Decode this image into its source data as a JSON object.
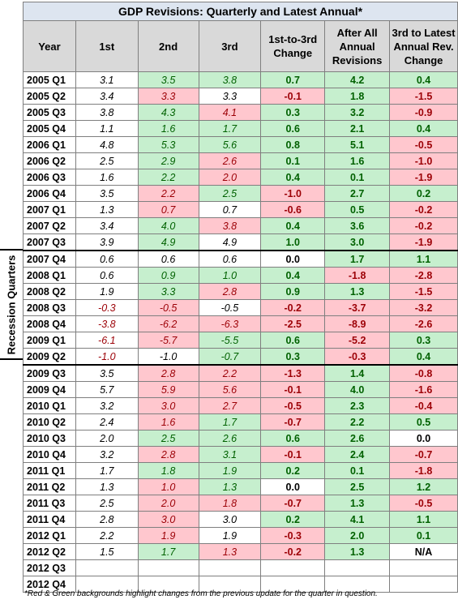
{
  "title": "GDP Revisions: Quarterly and Latest Annual*",
  "side_label": "Recession Quarters",
  "footnote": "*Red & Green backgrounds highlight changes from the previous update for the quarter in question.",
  "headers": [
    "Year",
    "1st",
    "2nd",
    "3rd",
    "1st-to-3rd Change",
    "After All Annual Revisions",
    "3rd to Latest Annual Rev. Change"
  ],
  "rows": [
    {
      "year": "2005 Q1",
      "c1": "3.1",
      "c2": "3.5",
      "c2bg": "g",
      "c3": "3.8",
      "c3bg": "g",
      "d13": "0.7",
      "d13bg": "g",
      "aar": "4.2",
      "aarbg": "g",
      "d3l": "0.4",
      "d3lbg": "g"
    },
    {
      "year": "2005 Q2",
      "c1": "3.4",
      "c2": "3.3",
      "c2bg": "r",
      "c3": "3.3",
      "c3bg": "w",
      "d13": "-0.1",
      "d13bg": "r",
      "aar": "1.8",
      "aarbg": "g",
      "d3l": "-1.5",
      "d3lbg": "r"
    },
    {
      "year": "2005 Q3",
      "c1": "3.8",
      "c2": "4.3",
      "c2bg": "g",
      "c3": "4.1",
      "c3bg": "r",
      "d13": "0.3",
      "d13bg": "g",
      "aar": "3.2",
      "aarbg": "g",
      "d3l": "-0.9",
      "d3lbg": "r"
    },
    {
      "year": "2005 Q4",
      "c1": "1.1",
      "c2": "1.6",
      "c2bg": "g",
      "c3": "1.7",
      "c3bg": "g",
      "d13": "0.6",
      "d13bg": "g",
      "aar": "2.1",
      "aarbg": "g",
      "d3l": "0.4",
      "d3lbg": "g"
    },
    {
      "year": "2006 Q1",
      "c1": "4.8",
      "c2": "5.3",
      "c2bg": "g",
      "c3": "5.6",
      "c3bg": "g",
      "d13": "0.8",
      "d13bg": "g",
      "aar": "5.1",
      "aarbg": "g",
      "d3l": "-0.5",
      "d3lbg": "r"
    },
    {
      "year": "2006 Q2",
      "c1": "2.5",
      "c2": "2.9",
      "c2bg": "g",
      "c3": "2.6",
      "c3bg": "r",
      "d13": "0.1",
      "d13bg": "g",
      "aar": "1.6",
      "aarbg": "g",
      "d3l": "-1.0",
      "d3lbg": "r"
    },
    {
      "year": "2006 Q3",
      "c1": "1.6",
      "c2": "2.2",
      "c2bg": "g",
      "c3": "2.0",
      "c3bg": "r",
      "d13": "0.4",
      "d13bg": "g",
      "aar": "0.1",
      "aarbg": "g",
      "d3l": "-1.9",
      "d3lbg": "r"
    },
    {
      "year": "2006 Q4",
      "c1": "3.5",
      "c2": "2.2",
      "c2bg": "r",
      "c3": "2.5",
      "c3bg": "g",
      "d13": "-1.0",
      "d13bg": "r",
      "aar": "2.7",
      "aarbg": "g",
      "d3l": "0.2",
      "d3lbg": "g"
    },
    {
      "year": "2007 Q1",
      "c1": "1.3",
      "c2": "0.7",
      "c2bg": "r",
      "c3": "0.7",
      "c3bg": "w",
      "d13": "-0.6",
      "d13bg": "r",
      "aar": "0.5",
      "aarbg": "g",
      "d3l": "-0.2",
      "d3lbg": "r"
    },
    {
      "year": "2007 Q2",
      "c1": "3.4",
      "c2": "4.0",
      "c2bg": "g",
      "c3": "3.8",
      "c3bg": "r",
      "d13": "0.4",
      "d13bg": "g",
      "aar": "3.6",
      "aarbg": "g",
      "d3l": "-0.2",
      "d3lbg": "r"
    },
    {
      "year": "2007 Q3",
      "c1": "3.9",
      "c2": "4.9",
      "c2bg": "g",
      "c3": "4.9",
      "c3bg": "w",
      "d13": "1.0",
      "d13bg": "g",
      "aar": "3.0",
      "aarbg": "g",
      "d3l": "-1.9",
      "d3lbg": "r"
    },
    {
      "year": "2007 Q4",
      "c1": "0.6",
      "c2": "0.6",
      "c2bg": "w",
      "c3": "0.6",
      "c3bg": "w",
      "d13": "0.0",
      "d13bg": "w",
      "aar": "1.7",
      "aarbg": "g",
      "d3l": "1.1",
      "d3lbg": "g"
    },
    {
      "year": "2008 Q1",
      "c1": "0.6",
      "c2": "0.9",
      "c2bg": "g",
      "c3": "1.0",
      "c3bg": "g",
      "d13": "0.4",
      "d13bg": "g",
      "aar": "-1.8",
      "aarbg": "r",
      "d3l": "-2.8",
      "d3lbg": "r"
    },
    {
      "year": "2008 Q2",
      "c1": "1.9",
      "c2": "3.3",
      "c2bg": "g",
      "c3": "2.8",
      "c3bg": "r",
      "d13": "0.9",
      "d13bg": "g",
      "aar": "1.3",
      "aarbg": "g",
      "d3l": "-1.5",
      "d3lbg": "r"
    },
    {
      "year": "2008 Q3",
      "c1": "-0.3",
      "c2": "-0.5",
      "c2bg": "r",
      "c3": "-0.5",
      "c3bg": "w",
      "d13": "-0.2",
      "d13bg": "r",
      "aar": "-3.7",
      "aarbg": "r",
      "d3l": "-3.2",
      "d3lbg": "r"
    },
    {
      "year": "2008 Q4",
      "c1": "-3.8",
      "c2": "-6.2",
      "c2bg": "r",
      "c3": "-6.3",
      "c3bg": "r",
      "d13": "-2.5",
      "d13bg": "r",
      "aar": "-8.9",
      "aarbg": "r",
      "d3l": "-2.6",
      "d3lbg": "r"
    },
    {
      "year": "2009 Q1",
      "c1": "-6.1",
      "c2": "-5.7",
      "c2bg": "r",
      "c3": "-5.5",
      "c3bg": "g",
      "d13": "0.6",
      "d13bg": "g",
      "aar": "-5.2",
      "aarbg": "r",
      "d3l": "0.3",
      "d3lbg": "g"
    },
    {
      "year": "2009 Q2",
      "c1": "-1.0",
      "c2": "-1.0",
      "c2bg": "w",
      "c3": "-0.7",
      "c3bg": "g",
      "d13": "0.3",
      "d13bg": "g",
      "aar": "-0.3",
      "aarbg": "r",
      "d3l": "0.4",
      "d3lbg": "g"
    },
    {
      "year": "2009 Q3",
      "c1": "3.5",
      "c2": "2.8",
      "c2bg": "r",
      "c3": "2.2",
      "c3bg": "r",
      "d13": "-1.3",
      "d13bg": "r",
      "aar": "1.4",
      "aarbg": "g",
      "d3l": "-0.8",
      "d3lbg": "r"
    },
    {
      "year": "2009 Q4",
      "c1": "5.7",
      "c2": "5.9",
      "c2bg": "r",
      "c3": "5.6",
      "c3bg": "r",
      "d13": "-0.1",
      "d13bg": "r",
      "aar": "4.0",
      "aarbg": "g",
      "d3l": "-1.6",
      "d3lbg": "r"
    },
    {
      "year": "2010 Q1",
      "c1": "3.2",
      "c2": "3.0",
      "c2bg": "r",
      "c3": "2.7",
      "c3bg": "r",
      "d13": "-0.5",
      "d13bg": "r",
      "aar": "2.3",
      "aarbg": "g",
      "d3l": "-0.4",
      "d3lbg": "r"
    },
    {
      "year": "2010 Q2",
      "c1": "2.4",
      "c2": "1.6",
      "c2bg": "r",
      "c3": "1.7",
      "c3bg": "g",
      "d13": "-0.7",
      "d13bg": "r",
      "aar": "2.2",
      "aarbg": "g",
      "d3l": "0.5",
      "d3lbg": "g"
    },
    {
      "year": "2010 Q3",
      "c1": "2.0",
      "c2": "2.5",
      "c2bg": "g",
      "c3": "2.6",
      "c3bg": "g",
      "d13": "0.6",
      "d13bg": "g",
      "aar": "2.6",
      "aarbg": "g",
      "d3l": "0.0",
      "d3lbg": "w"
    },
    {
      "year": "2010 Q4",
      "c1": "3.2",
      "c2": "2.8",
      "c2bg": "r",
      "c3": "3.1",
      "c3bg": "g",
      "d13": "-0.1",
      "d13bg": "r",
      "aar": "2.4",
      "aarbg": "g",
      "d3l": "-0.7",
      "d3lbg": "r"
    },
    {
      "year": "2011 Q1",
      "c1": "1.7",
      "c2": "1.8",
      "c2bg": "g",
      "c3": "1.9",
      "c3bg": "g",
      "d13": "0.2",
      "d13bg": "g",
      "aar": "0.1",
      "aarbg": "g",
      "d3l": "-1.8",
      "d3lbg": "r"
    },
    {
      "year": "2011 Q2",
      "c1": "1.3",
      "c2": "1.0",
      "c2bg": "r",
      "c3": "1.3",
      "c3bg": "g",
      "d13": "0.0",
      "d13bg": "w",
      "aar": "2.5",
      "aarbg": "g",
      "d3l": "1.2",
      "d3lbg": "g"
    },
    {
      "year": "2011 Q3",
      "c1": "2.5",
      "c2": "2.0",
      "c2bg": "r",
      "c3": "1.8",
      "c3bg": "r",
      "d13": "-0.7",
      "d13bg": "r",
      "aar": "1.3",
      "aarbg": "g",
      "d3l": "-0.5",
      "d3lbg": "r"
    },
    {
      "year": "2011 Q4",
      "c1": "2.8",
      "c2": "3.0",
      "c2bg": "r",
      "c3": "3.0",
      "c3bg": "w",
      "d13": "0.2",
      "d13bg": "g",
      "aar": "4.1",
      "aarbg": "g",
      "d3l": "1.1",
      "d3lbg": "g"
    },
    {
      "year": "2012 Q1",
      "c1": "2.2",
      "c2": "1.9",
      "c2bg": "r",
      "c3": "1.9",
      "c3bg": "w",
      "d13": "-0.3",
      "d13bg": "r",
      "aar": "2.0",
      "aarbg": "g",
      "d3l": "0.1",
      "d3lbg": "g"
    },
    {
      "year": "2012 Q2",
      "c1": "1.5",
      "c2": "1.7",
      "c2bg": "g",
      "c3": "1.3",
      "c3bg": "r",
      "d13": "-0.2",
      "d13bg": "r",
      "aar": "1.3",
      "aarbg": "g",
      "d3l": "N/A",
      "d3lbg": "w"
    },
    {
      "year": "2012 Q3",
      "c1": "",
      "c2": "",
      "c2bg": "w",
      "c3": "",
      "c3bg": "w",
      "d13": "",
      "d13bg": "w",
      "aar": "",
      "aarbg": "w",
      "d3l": "",
      "d3lbg": "w"
    },
    {
      "year": "2012 Q4",
      "c1": "",
      "c2": "",
      "c2bg": "w",
      "c3": "",
      "c3bg": "w",
      "d13": "",
      "d13bg": "w",
      "aar": "",
      "aarbg": "w",
      "d3l": "",
      "d3lbg": "w"
    }
  ],
  "colors": {
    "green_fill": "#c6efce",
    "red_fill": "#ffc7ce",
    "green_text": "#006100",
    "red_text": "#9c0006",
    "header_fill": "#d9d9d9",
    "title_fill": "#dde5f0"
  }
}
